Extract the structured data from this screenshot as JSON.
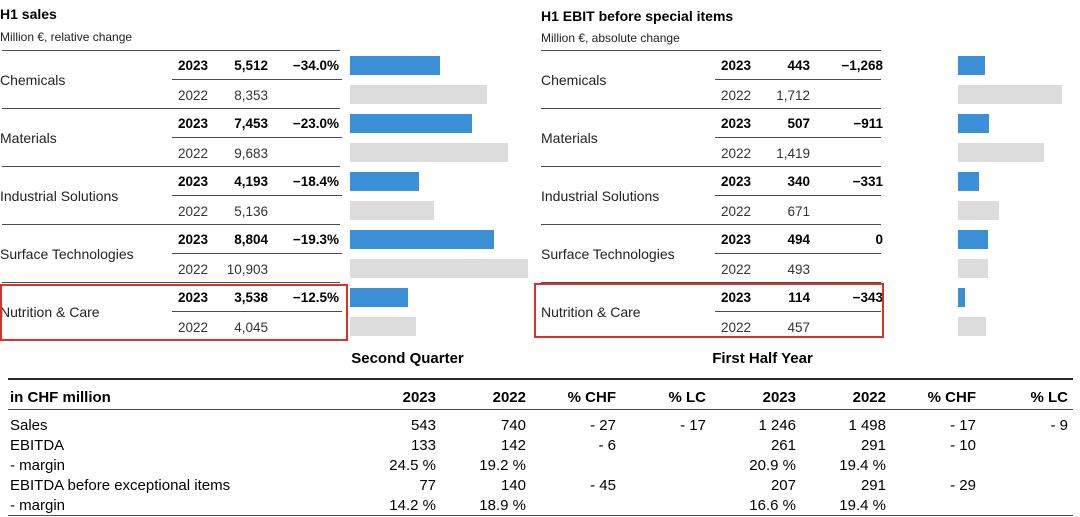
{
  "chart_data": [
    {
      "type": "bar",
      "title": "H1 sales",
      "subtitle": "Million €, relative change",
      "categories": [
        "Chemicals",
        "Materials",
        "Industrial Solutions",
        "Surface Technologies",
        "Nutrition & Care"
      ],
      "series": [
        {
          "name": "2023",
          "values": [
            5512,
            7453,
            4193,
            8804,
            3538
          ]
        },
        {
          "name": "2022",
          "values": [
            8353,
            9683,
            5136,
            10903,
            4045
          ]
        }
      ],
      "labels_2023": [
        "5,512",
        "7,453",
        "4,193",
        "8,804",
        "3,538"
      ],
      "labels_2022": [
        "8,353",
        "9,683",
        "5,136",
        "10,903",
        "4,045"
      ],
      "changes": [
        "−34.0%",
        "−23.0%",
        "−18.4%",
        "−19.3%",
        "−12.5%"
      ],
      "xlim": [
        0,
        11500
      ]
    },
    {
      "type": "bar",
      "title": "H1 EBIT before special items",
      "subtitle": "Million €, absolute change",
      "categories": [
        "Chemicals",
        "Materials",
        "Industrial Solutions",
        "Surface Technologies",
        "Nutrition & Care"
      ],
      "series": [
        {
          "name": "2023",
          "values": [
            443,
            507,
            340,
            494,
            114
          ]
        },
        {
          "name": "2022",
          "values": [
            1712,
            1419,
            671,
            493,
            457
          ]
        }
      ],
      "labels_2023": [
        "443",
        "507",
        "340",
        "494",
        "114"
      ],
      "labels_2022": [
        "1,712",
        "1,419",
        "671",
        "493",
        "457"
      ],
      "changes": [
        "−1,268",
        "−911",
        "−331",
        "0",
        "−343"
      ],
      "xlim": [
        0,
        1900
      ]
    }
  ],
  "years": {
    "current": "2023",
    "previous": "2022"
  },
  "highlight_color": "#d8332b",
  "bar_colors": {
    "current": "#3a8fd6",
    "previous": "#dcdcdc"
  },
  "table": {
    "group_second_quarter": "Second Quarter",
    "group_first_half": "First Half Year",
    "unit_label": "in CHF million",
    "columns": [
      "2023",
      "2022",
      "% CHF",
      "% LC",
      "2023",
      "2022",
      "% CHF",
      "% LC"
    ],
    "rows": [
      {
        "label": "Sales",
        "cells": [
          "543",
          "740",
          "- 27",
          "- 17",
          "1 246",
          "1 498",
          "- 17",
          "- 9"
        ]
      },
      {
        "label": "EBITDA",
        "cells": [
          "133",
          "142",
          "- 6",
          "",
          "261",
          "291",
          "- 10",
          ""
        ]
      },
      {
        "label": "- margin",
        "cells": [
          "24.5 %",
          "19.2 %",
          "",
          "",
          "20.9 %",
          "19.4 %",
          "",
          ""
        ]
      },
      {
        "label": "EBITDA before exceptional items",
        "cells": [
          "77",
          "140",
          "- 45",
          "",
          "207",
          "291",
          "- 29",
          ""
        ]
      },
      {
        "label": "- margin",
        "cells": [
          "14.2 %",
          "18.9 %",
          "",
          "",
          "16.6 %",
          "19.4 %",
          "",
          ""
        ]
      }
    ]
  }
}
